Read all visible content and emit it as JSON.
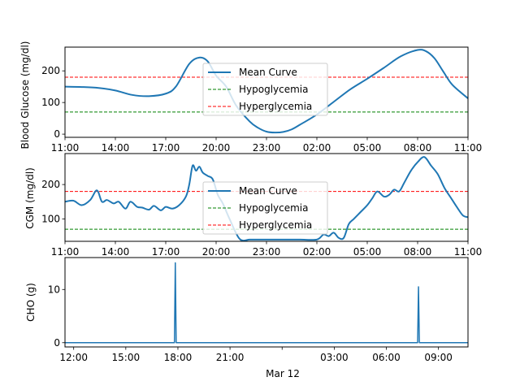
{
  "chart_data": [
    {
      "type": "line",
      "ylabel": "Blood Glucose (mg/dl)",
      "xlim": [
        "11:00",
        "11:00"
      ],
      "ylim": [
        -10,
        275
      ],
      "x_ticks": [
        "11:00",
        "14:00",
        "17:00",
        "20:00",
        "23:00",
        "02:00",
        "05:00",
        "08:00",
        "11:00"
      ],
      "y_ticks": [
        0,
        100,
        200
      ],
      "legend_position": "center",
      "legend": [
        "Mean Curve",
        "Hypoglycemia",
        "Hyperglycemia"
      ],
      "thresholds": {
        "hypoglycemia": 70,
        "hyperglycemia": 180
      },
      "series": [
        {
          "name": "Mean Curve",
          "color": "#1f77b4",
          "x_hours": [
            0,
            1,
            2,
            3,
            4,
            5,
            6,
            6.6,
            7.4,
            8,
            8.5,
            9,
            9.6,
            10.2,
            11,
            11.5,
            12,
            12.5,
            13,
            13.5,
            14,
            15,
            16,
            17,
            18,
            19,
            20,
            21,
            21.5,
            22,
            22.5,
            23,
            23.5,
            24
          ],
          "y": [
            150,
            149,
            146,
            138,
            124,
            120,
            128,
            150,
            222,
            242,
            230,
            185,
            150,
            90,
            40,
            20,
            8,
            5,
            7,
            15,
            30,
            62,
            102,
            142,
            175,
            210,
            246,
            266,
            262,
            240,
            200,
            160,
            135,
            113
          ]
        }
      ]
    },
    {
      "type": "line",
      "ylabel": "CGM (mg/dl)",
      "xlim": [
        "11:00",
        "11:00"
      ],
      "ylim": [
        35,
        290
      ],
      "x_ticks": [
        "11:00",
        "14:00",
        "17:00",
        "20:00",
        "23:00",
        "02:00",
        "05:00",
        "08:00",
        "11:00"
      ],
      "y_ticks": [
        100,
        200
      ],
      "legend_position": "center",
      "legend": [
        "Mean Curve",
        "Hypoglycemia",
        "Hyperglycemia"
      ],
      "thresholds": {
        "hypoglycemia": 70,
        "hyperglycemia": 180
      },
      "series": [
        {
          "name": "Mean Curve",
          "color": "#1f77b4",
          "x_hours": [
            0,
            0.5,
            1,
            1.5,
            1.9,
            2.2,
            2.5,
            2.9,
            3.2,
            3.6,
            3.9,
            4.3,
            4.6,
            5.0,
            5.3,
            5.7,
            6.0,
            6.4,
            6.8,
            7.2,
            7.4,
            7.6,
            7.8,
            8.0,
            8.2,
            8.5,
            8.8,
            9.1,
            9.4,
            9.8,
            10.4,
            11,
            11.5,
            12,
            13,
            14,
            15,
            15.4,
            15.7,
            16.0,
            16.3,
            16.6,
            16.9,
            17.2,
            17.6,
            18.0,
            18.3,
            18.6,
            19.0,
            19.3,
            19.6,
            19.9,
            20.2,
            20.6,
            21.0,
            21.4,
            21.8,
            22.2,
            22.6,
            23.0,
            23.4,
            23.7,
            24
          ],
          "y": [
            150,
            153,
            140,
            155,
            183,
            150,
            155,
            145,
            150,
            130,
            150,
            135,
            133,
            127,
            138,
            125,
            135,
            130,
            140,
            165,
            200,
            255,
            240,
            252,
            235,
            225,
            215,
            170,
            145,
            100,
            42,
            40,
            40,
            40,
            40,
            40,
            40,
            55,
            50,
            60,
            45,
            45,
            85,
            100,
            120,
            140,
            160,
            180,
            165,
            170,
            185,
            180,
            205,
            240,
            265,
            280,
            255,
            230,
            190,
            160,
            130,
            110,
            105
          ]
        }
      ]
    },
    {
      "type": "line",
      "ylabel": "CHO (g)",
      "xlabel": "Mar 12",
      "xlim": [
        "11:30",
        "10:40"
      ],
      "ylim": [
        -0.8,
        16
      ],
      "x_ticks": [
        "12:00",
        "15:00",
        "18:00",
        "21:00",
        "",
        "03:00",
        "06:00",
        "09:00"
      ],
      "y_ticks": [
        0,
        10
      ],
      "series": [
        {
          "name": "",
          "color": "#1f77b4",
          "x_hours": [
            0,
            6.3,
            6.35,
            6.4,
            20.3,
            20.35,
            20.4,
            23.2
          ],
          "y": [
            0,
            0,
            15,
            0,
            0,
            10.5,
            0,
            0
          ]
        }
      ]
    }
  ],
  "colors": {
    "series": "#1f77b4",
    "hypoglycemia": "#008000",
    "hyperglycemia": "#ff0000"
  }
}
